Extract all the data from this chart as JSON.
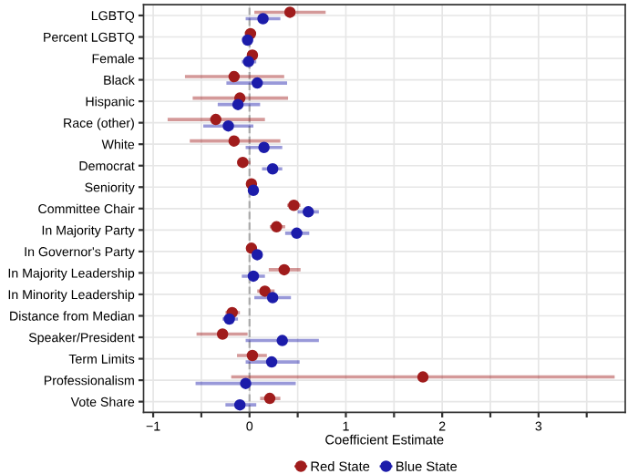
{
  "chart_data": {
    "type": "scatter",
    "orientation": "horizontal",
    "xlabel": "Coefficient Estimate",
    "categories": [
      "LGBTQ",
      "Percent LGBTQ",
      "Female",
      "Black",
      "Hispanic",
      "Race (other)",
      "White",
      "Democrat",
      "Seniority",
      "Committee Chair",
      "In Majority Party",
      "In Governor's Party",
      "In Majority Leadership",
      "In Minority Leadership",
      "Distance from Median",
      "Speaker/President",
      "Term Limits",
      "Professionalism",
      "Vote Share"
    ],
    "series": [
      {
        "name": "Red State",
        "color": "#a01c1c",
        "values": [
          0.42,
          0.01,
          0.03,
          -0.16,
          -0.1,
          -0.35,
          -0.16,
          -0.07,
          0.02,
          0.46,
          0.28,
          0.02,
          0.36,
          0.16,
          -0.18,
          -0.28,
          0.03,
          1.8,
          0.21
        ],
        "errors": [
          [
            0.05,
            0.79
          ],
          [
            -0.01,
            0.03
          ],
          [
            -0.01,
            0.08
          ],
          [
            -0.67,
            0.36
          ],
          [
            -0.59,
            0.4
          ],
          [
            -0.85,
            0.16
          ],
          [
            -0.62,
            0.32
          ],
          [
            -0.13,
            0.01
          ],
          [
            0.0,
            0.04
          ],
          [
            0.39,
            0.53
          ],
          [
            0.21,
            0.37
          ],
          [
            -0.02,
            0.07
          ],
          [
            0.2,
            0.53
          ],
          [
            0.08,
            0.26
          ],
          [
            -0.25,
            -0.1
          ],
          [
            -0.55,
            -0.02
          ],
          [
            -0.13,
            0.18
          ],
          [
            -0.19,
            3.79
          ],
          [
            0.11,
            0.32
          ]
        ]
      },
      {
        "name": "Blue State",
        "color": "#1c1caa",
        "values": [
          0.14,
          -0.02,
          -0.01,
          0.08,
          -0.12,
          -0.22,
          0.15,
          0.24,
          0.04,
          0.61,
          0.49,
          0.08,
          0.04,
          0.24,
          -0.21,
          0.34,
          0.23,
          -0.04,
          -0.1
        ],
        "errors": [
          [
            -0.04,
            0.32
          ],
          [
            -0.04,
            0.0
          ],
          [
            -0.08,
            0.07
          ],
          [
            -0.24,
            0.39
          ],
          [
            -0.33,
            0.11
          ],
          [
            -0.48,
            0.04
          ],
          [
            -0.04,
            0.34
          ],
          [
            0.13,
            0.34
          ],
          [
            0.02,
            0.06
          ],
          [
            0.5,
            0.72
          ],
          [
            0.37,
            0.62
          ],
          [
            0.04,
            0.13
          ],
          [
            -0.08,
            0.16
          ],
          [
            0.05,
            0.43
          ],
          [
            -0.28,
            -0.12
          ],
          [
            -0.04,
            0.72
          ],
          [
            -0.04,
            0.52
          ],
          [
            -0.56,
            0.48
          ],
          [
            -0.25,
            0.07
          ]
        ]
      }
    ],
    "xlim": [
      -1.1,
      3.9
    ],
    "xticks": [
      {
        "value": -1,
        "label": "−1"
      },
      {
        "value": -0.5,
        "label": null
      },
      0,
      {
        "value": 0.5,
        "label": null
      },
      1,
      {
        "value": 1.5,
        "label": null
      },
      2,
      {
        "value": 2.5,
        "label": null
      },
      3,
      {
        "value": 3.5,
        "label": null
      }
    ],
    "ref_lines": [
      {
        "axis": "x",
        "value": 0,
        "color": "#aaaaaa",
        "line_style": "dashed"
      }
    ],
    "grid": true,
    "legend": "bottom",
    "marker": "circle"
  }
}
